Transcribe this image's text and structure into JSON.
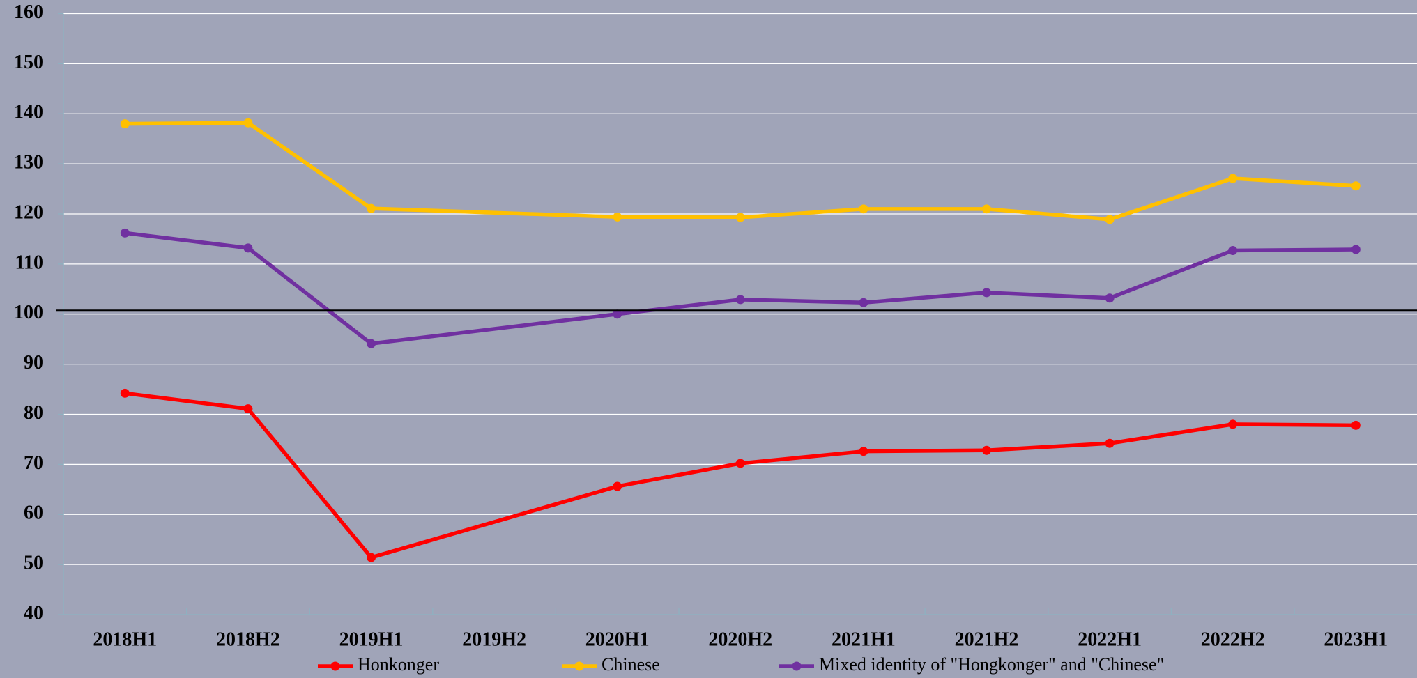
{
  "chart_data": {
    "type": "line",
    "categories": [
      "2018H1",
      "2018H2",
      "2019H1",
      "2019H2",
      "2020H1",
      "2020H2",
      "2021H1",
      "2021H2",
      "2022H1",
      "2022H2",
      "2023H1"
    ],
    "series": [
      {
        "name": "Honkonger",
        "color": "#ff0000",
        "values": [
          84.2,
          81.1,
          51.4,
          null,
          65.6,
          70.2,
          72.6,
          72.8,
          74.2,
          78.0,
          77.8
        ]
      },
      {
        "name": "Chinese",
        "color": "#ffc000",
        "values": [
          138.0,
          138.2,
          121.1,
          null,
          119.4,
          119.3,
          121.0,
          121.0,
          118.9,
          127.1,
          125.6
        ]
      },
      {
        "name": "Mixed identity of \"Hongkonger\" and \"Chinese\"",
        "color": "#7030a0",
        "values": [
          116.2,
          113.2,
          94.1,
          null,
          100.0,
          102.9,
          102.3,
          104.3,
          103.2,
          112.7,
          112.9
        ]
      }
    ],
    "ylim": [
      40,
      160
    ],
    "yticks": [
      40,
      50,
      60,
      70,
      80,
      90,
      100,
      110,
      120,
      130,
      140,
      150,
      160
    ],
    "grid": true,
    "reference_line": 100.7,
    "legend": "bottom"
  }
}
